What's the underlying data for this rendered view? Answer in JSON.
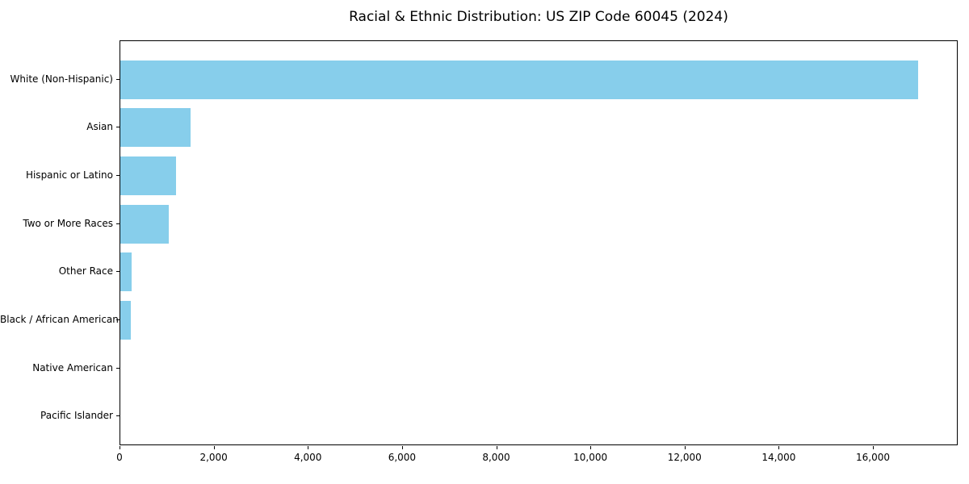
{
  "chart_data": {
    "type": "bar",
    "orientation": "horizontal",
    "title": "Racial & Ethnic Distribution: US ZIP Code 60045 (2024)",
    "categories": [
      "White (Non-Hispanic)",
      "Asian",
      "Hispanic or Latino",
      "Two or More Races",
      "Other Race",
      "Black / African American",
      "Native American",
      "Pacific Islander"
    ],
    "values": [
      16950,
      1490,
      1180,
      1030,
      240,
      220,
      0,
      0
    ],
    "xlabel": "",
    "ylabel": "",
    "xlim": [
      0,
      17800
    ],
    "x_ticks": [
      0,
      2000,
      4000,
      6000,
      8000,
      10000,
      12000,
      14000,
      16000
    ],
    "x_tick_labels": [
      "0",
      "2,000",
      "4,000",
      "6,000",
      "8,000",
      "10,000",
      "12,000",
      "14,000",
      "16,000"
    ],
    "bar_color": "#87CEEB",
    "grid": false,
    "legend": null,
    "background_color": "#ffffff",
    "axis_color": "#000000"
  }
}
